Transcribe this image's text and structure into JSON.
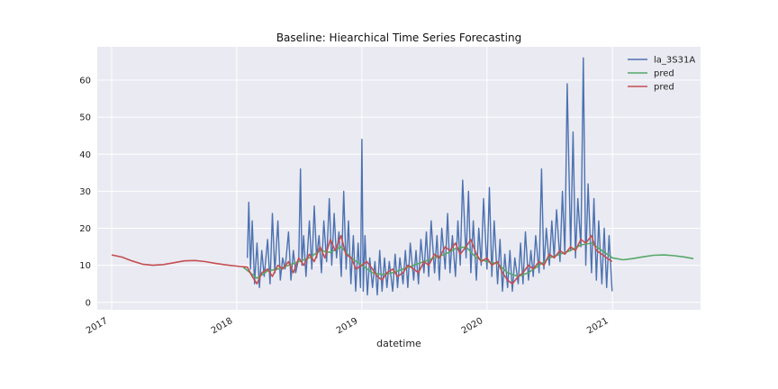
{
  "chart_data": {
    "type": "line",
    "title": "Baseline: Hiearchical Time Series Forecasting",
    "xlabel": "datetime",
    "ylabel": "",
    "x_tick_labels": [
      "2017",
      "2018",
      "2019",
      "2020",
      "2021"
    ],
    "y_ticks": [
      0,
      10,
      20,
      30,
      40,
      50,
      60
    ],
    "xlim": [
      "2016-11-20",
      "2021-09-15"
    ],
    "ylim": [
      -2,
      69
    ],
    "grid": true,
    "legend_position": "top-right",
    "colors": {
      "background": "#eaeaf2",
      "grid": "#ffffff",
      "observed": "#4c72b0",
      "pred_forecast": "#55a868",
      "pred_fitted": "#c44e52"
    },
    "series": [
      {
        "name": "la_3S31A",
        "color": "#4c72b0",
        "x": [
          "2018-02-01",
          "2018-02-05",
          "2018-02-10",
          "2018-02-15",
          "2018-02-22",
          "2018-03-01",
          "2018-03-08",
          "2018-03-15",
          "2018-03-22",
          "2018-04-01",
          "2018-04-08",
          "2018-04-15",
          "2018-04-22",
          "2018-05-01",
          "2018-05-08",
          "2018-05-15",
          "2018-05-22",
          "2018-06-01",
          "2018-06-08",
          "2018-06-15",
          "2018-06-22",
          "2018-07-01",
          "2018-07-06",
          "2018-07-10",
          "2018-07-15",
          "2018-07-22",
          "2018-08-01",
          "2018-08-08",
          "2018-08-15",
          "2018-08-22",
          "2018-08-29",
          "2018-09-05",
          "2018-09-12",
          "2018-09-20",
          "2018-09-28",
          "2018-10-05",
          "2018-10-12",
          "2018-10-19",
          "2018-10-26",
          "2018-11-02",
          "2018-11-09",
          "2018-11-16",
          "2018-11-23",
          "2018-11-30",
          "2018-12-07",
          "2018-12-14",
          "2018-12-21",
          "2018-12-28",
          "2019-01-01",
          "2019-01-05",
          "2019-01-10",
          "2019-01-17",
          "2019-01-24",
          "2019-02-01",
          "2019-02-08",
          "2019-02-15",
          "2019-02-22",
          "2019-03-01",
          "2019-03-08",
          "2019-03-15",
          "2019-03-22",
          "2019-04-01",
          "2019-04-08",
          "2019-04-15",
          "2019-04-22",
          "2019-05-01",
          "2019-05-08",
          "2019-05-15",
          "2019-05-22",
          "2019-06-01",
          "2019-06-08",
          "2019-06-15",
          "2019-06-22",
          "2019-07-01",
          "2019-07-08",
          "2019-07-15",
          "2019-07-22",
          "2019-08-01",
          "2019-08-08",
          "2019-08-15",
          "2019-08-22",
          "2019-09-01",
          "2019-09-08",
          "2019-09-15",
          "2019-09-22",
          "2019-10-01",
          "2019-10-08",
          "2019-10-15",
          "2019-10-22",
          "2019-11-01",
          "2019-11-08",
          "2019-11-15",
          "2019-11-22",
          "2019-12-01",
          "2019-12-08",
          "2019-12-15",
          "2019-12-22",
          "2020-01-01",
          "2020-01-08",
          "2020-01-15",
          "2020-01-22",
          "2020-02-01",
          "2020-02-08",
          "2020-02-15",
          "2020-02-22",
          "2020-03-01",
          "2020-03-08",
          "2020-03-15",
          "2020-03-22",
          "2020-04-01",
          "2020-04-08",
          "2020-04-15",
          "2020-04-22",
          "2020-05-01",
          "2020-05-08",
          "2020-05-15",
          "2020-05-22",
          "2020-06-01",
          "2020-06-08",
          "2020-06-15",
          "2020-06-22",
          "2020-07-01",
          "2020-07-08",
          "2020-07-15",
          "2020-07-22",
          "2020-08-01",
          "2020-08-08",
          "2020-08-15",
          "2020-08-22",
          "2020-09-01",
          "2020-09-08",
          "2020-09-15",
          "2020-09-22",
          "2020-10-01",
          "2020-10-08",
          "2020-10-15",
          "2020-10-22",
          "2020-11-01",
          "2020-11-08",
          "2020-11-15",
          "2020-11-22",
          "2020-12-01",
          "2020-12-08",
          "2020-12-15",
          "2020-12-22",
          "2020-12-31"
        ],
        "values": [
          12,
          27,
          9,
          22,
          5,
          16,
          4,
          14,
          7,
          17,
          5,
          24,
          8,
          22,
          6,
          12,
          9,
          19,
          6,
          14,
          8,
          12,
          36,
          10,
          18,
          7,
          22,
          9,
          26,
          12,
          18,
          8,
          22,
          11,
          28,
          10,
          24,
          12,
          19,
          7,
          30,
          9,
          22,
          5,
          18,
          3,
          16,
          4,
          44,
          3,
          18,
          2,
          12,
          4,
          11,
          2,
          14,
          3,
          12,
          4,
          11,
          3,
          13,
          4,
          12,
          5,
          14,
          4,
          16,
          6,
          14,
          5,
          17,
          8,
          19,
          7,
          22,
          8,
          18,
          6,
          20,
          9,
          24,
          8,
          18,
          7,
          22,
          10,
          33,
          12,
          30,
          8,
          22,
          6,
          20,
          10,
          28,
          9,
          31,
          7,
          22,
          5,
          17,
          3,
          13,
          4,
          14,
          3,
          12,
          5,
          16,
          5,
          19,
          6,
          14,
          7,
          18,
          8,
          36,
          9,
          20,
          10,
          22,
          12,
          25,
          11,
          30,
          13,
          59,
          14,
          46,
          12,
          28,
          15,
          66,
          10,
          32,
          8,
          28,
          6,
          22,
          5,
          20,
          4,
          18,
          3
        ]
      },
      {
        "name": "pred",
        "color": "#55a868",
        "x": [
          "2018-01-20",
          "2018-03-01",
          "2018-04-01",
          "2018-05-01",
          "2018-06-01",
          "2018-07-01",
          "2018-08-01",
          "2018-09-01",
          "2018-10-01",
          "2018-11-01",
          "2018-12-01",
          "2019-01-01",
          "2019-02-01",
          "2019-03-01",
          "2019-04-01",
          "2019-05-01",
          "2019-06-01",
          "2019-07-01",
          "2019-08-01",
          "2019-09-01",
          "2019-10-01",
          "2019-11-01",
          "2019-12-01",
          "2020-01-01",
          "2020-02-01",
          "2020-03-01",
          "2020-04-01",
          "2020-05-01",
          "2020-06-01",
          "2020-07-01",
          "2020-08-01",
          "2020-09-01",
          "2020-10-01",
          "2020-11-01",
          "2020-12-01",
          "2021-01-01",
          "2021-02-01",
          "2021-03-01",
          "2021-04-01",
          "2021-05-01",
          "2021-06-01",
          "2021-07-01",
          "2021-08-01",
          "2021-08-25"
        ],
        "values": [
          9.5,
          6.5,
          8.5,
          9,
          10,
          11,
          12,
          14,
          13.5,
          15,
          12,
          10,
          8,
          7.5,
          8,
          9,
          10,
          11,
          12,
          13,
          14.5,
          15,
          12,
          11,
          10.5,
          8,
          7,
          8,
          10,
          12,
          13,
          14,
          15.5,
          16,
          14,
          12,
          11.5,
          11.8,
          12.3,
          12.7,
          12.8,
          12.6,
          12.2,
          11.8
        ]
      },
      {
        "name": "pred",
        "color": "#c44e52",
        "x": [
          "2017-01-01",
          "2017-02-01",
          "2017-03-01",
          "2017-04-01",
          "2017-05-01",
          "2017-06-01",
          "2017-07-01",
          "2017-08-01",
          "2017-09-01",
          "2017-10-01",
          "2017-11-01",
          "2017-12-01",
          "2018-01-01",
          "2018-02-01",
          "2018-02-15",
          "2018-03-01",
          "2018-03-15",
          "2018-04-01",
          "2018-04-15",
          "2018-05-01",
          "2018-05-15",
          "2018-06-01",
          "2018-06-15",
          "2018-07-01",
          "2018-07-15",
          "2018-08-01",
          "2018-08-15",
          "2018-09-01",
          "2018-09-15",
          "2018-10-01",
          "2018-10-15",
          "2018-11-01",
          "2018-11-15",
          "2018-12-01",
          "2018-12-15",
          "2019-01-01",
          "2019-01-15",
          "2019-02-01",
          "2019-02-15",
          "2019-03-01",
          "2019-03-15",
          "2019-04-01",
          "2019-04-15",
          "2019-05-01",
          "2019-05-15",
          "2019-06-01",
          "2019-06-15",
          "2019-07-01",
          "2019-07-15",
          "2019-08-01",
          "2019-08-15",
          "2019-09-01",
          "2019-09-15",
          "2019-10-01",
          "2019-10-15",
          "2019-11-01",
          "2019-11-15",
          "2019-12-01",
          "2019-12-15",
          "2020-01-01",
          "2020-01-15",
          "2020-02-01",
          "2020-02-15",
          "2020-03-01",
          "2020-03-15",
          "2020-04-01",
          "2020-04-15",
          "2020-05-01",
          "2020-05-15",
          "2020-06-01",
          "2020-06-15",
          "2020-07-01",
          "2020-07-15",
          "2020-08-01",
          "2020-08-15",
          "2020-09-01",
          "2020-09-15",
          "2020-10-01",
          "2020-10-15",
          "2020-11-01",
          "2020-11-15",
          "2020-12-01",
          "2020-12-15",
          "2020-12-31"
        ],
        "values": [
          12.8,
          12.2,
          11.2,
          10.3,
          10,
          10.2,
          10.7,
          11.2,
          11.3,
          11,
          10.5,
          10.1,
          9.8,
          9.5,
          7,
          5,
          8,
          9,
          7,
          10,
          9,
          11,
          8,
          12,
          10,
          13,
          11,
          15,
          12,
          17,
          14,
          18,
          13,
          12,
          9,
          10,
          11,
          9,
          7,
          6,
          8,
          9,
          7,
          8,
          10,
          9,
          8,
          11,
          10,
          13,
          12,
          15,
          14,
          16,
          13,
          15,
          17,
          13,
          11,
          12,
          10,
          11,
          8,
          6,
          5,
          7,
          8,
          10,
          9,
          11,
          10,
          13,
          12,
          14,
          13,
          15,
          14,
          17,
          16,
          18,
          14,
          13,
          12,
          11
        ]
      }
    ]
  }
}
